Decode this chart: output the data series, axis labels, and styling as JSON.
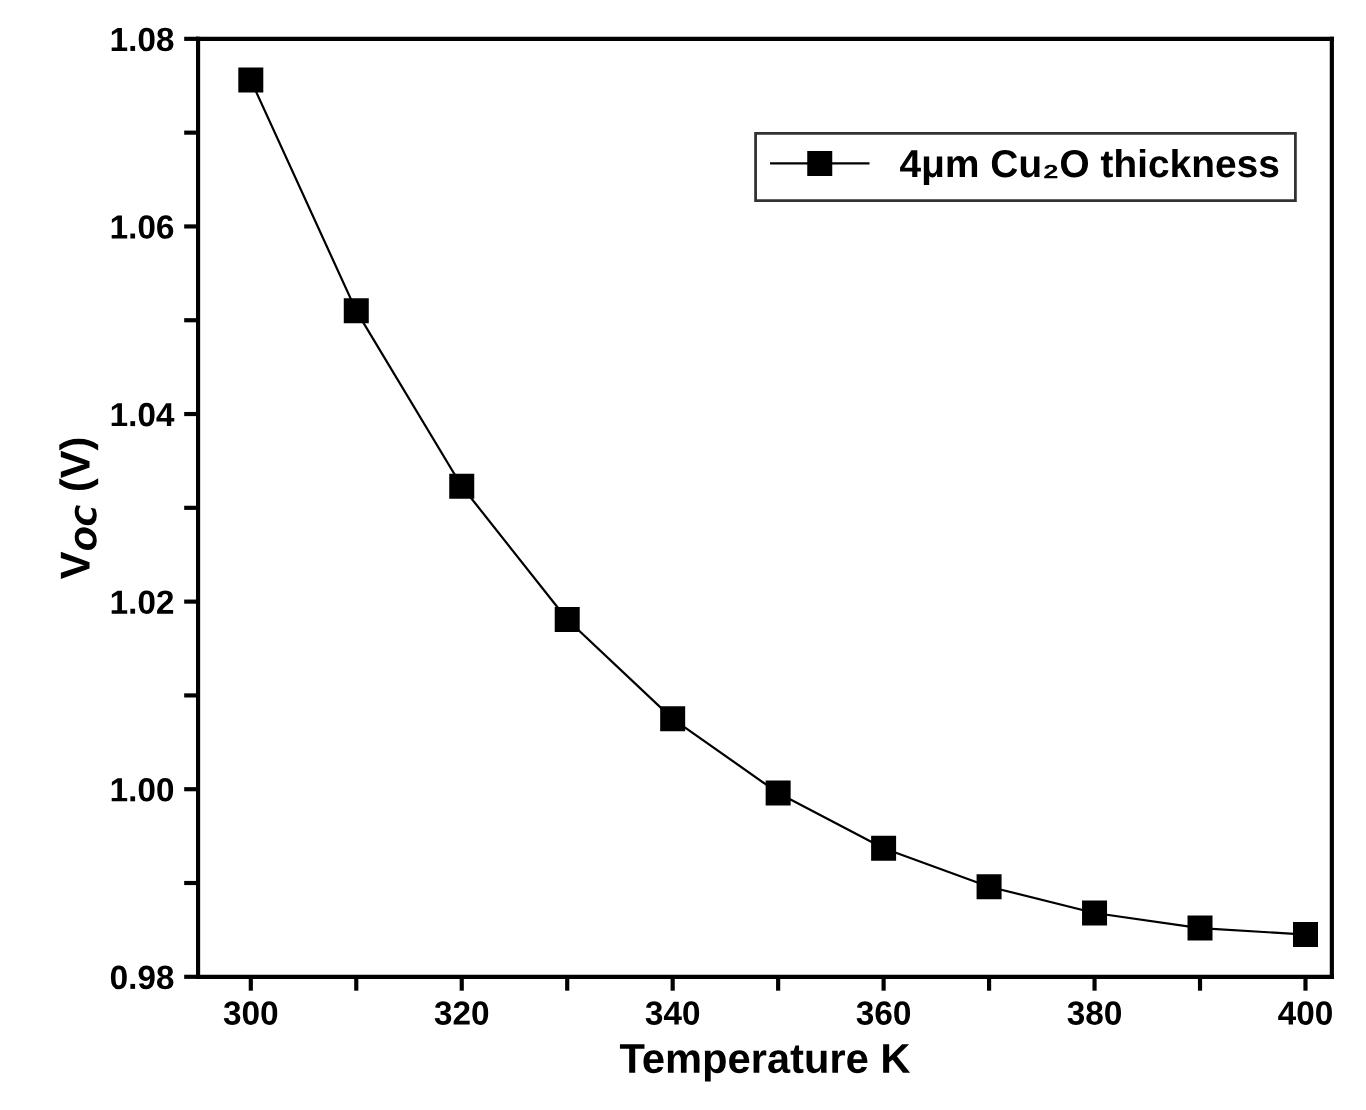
{
  "chart_data": {
    "type": "line",
    "xlabel": "Temperature K",
    "ylabel": "V$_{OC}$ (V)",
    "x": [
      300,
      310,
      320,
      330,
      340,
      350,
      360,
      370,
      380,
      390,
      400
    ],
    "series": [
      {
        "name": "4μm Cu₂O thickness",
        "color": "#000000",
        "values": [
          1.0756,
          1.051,
          1.0323,
          1.0181,
          1.0075,
          0.9996,
          0.9937,
          0.9896,
          0.9868,
          0.9852,
          0.9845
        ]
      }
    ],
    "xlim": [
      295,
      402.5
    ],
    "ylim": [
      0.98,
      1.08
    ],
    "xticks": [
      300,
      {
        "value": 310,
        "label": null
      },
      320,
      {
        "value": 330,
        "label": null
      },
      340,
      {
        "value": 350,
        "label": null
      },
      360,
      {
        "value": 370,
        "label": null
      },
      380,
      {
        "value": 390,
        "label": null
      },
      400
    ],
    "yticks": [
      0.98,
      {
        "value": 0.99,
        "label": null
      },
      "1.00",
      {
        "value": 1.01,
        "label": null
      },
      1.02,
      {
        "value": 1.03,
        "label": null
      },
      1.04,
      {
        "value": 1.05,
        "label": null
      },
      1.06,
      {
        "value": 1.07,
        "label": null
      },
      1.08
    ],
    "marker": "square",
    "line_style": "solid",
    "grid": false,
    "legend": "top right"
  }
}
